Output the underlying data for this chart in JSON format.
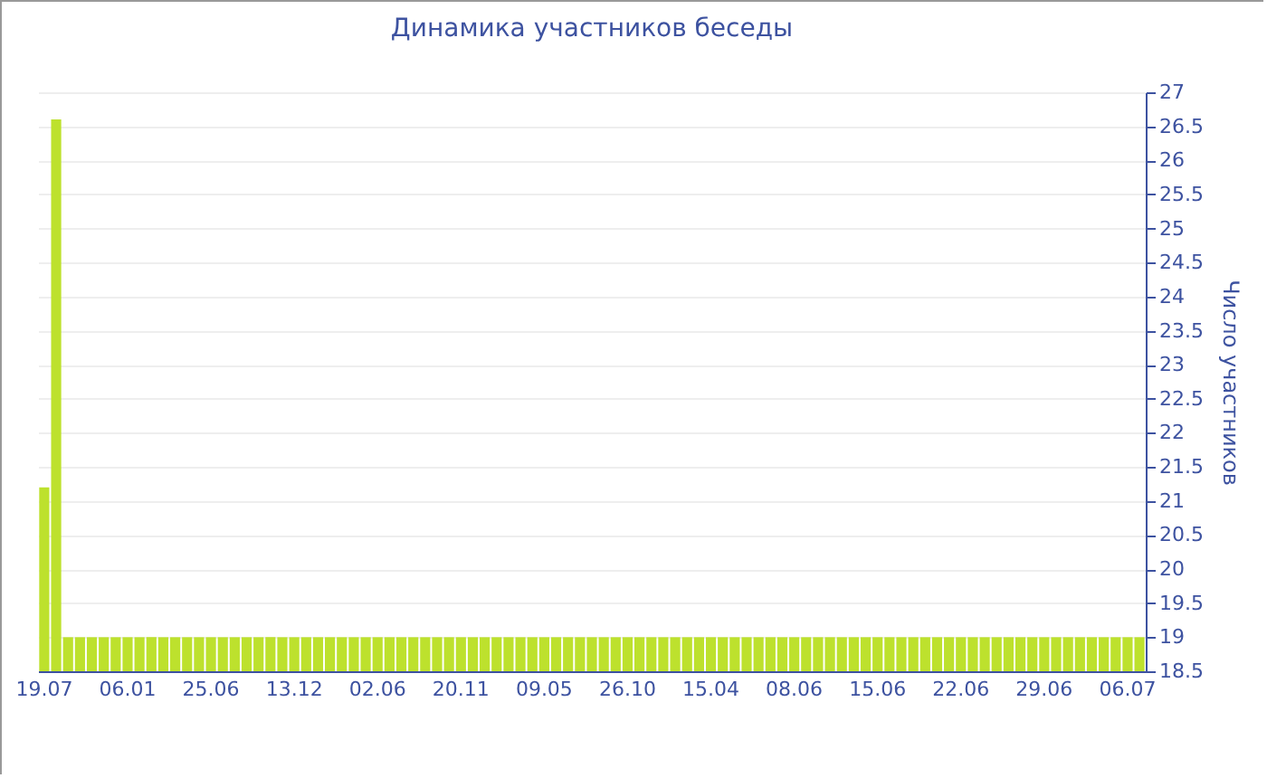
{
  "chart_data": {
    "type": "bar",
    "title": "Динамика участников беседы",
    "ylabel": "Число участников",
    "categories": [
      "19.07",
      null,
      null,
      null,
      null,
      null,
      null,
      "06.01",
      null,
      null,
      null,
      null,
      null,
      null,
      "25.06",
      null,
      null,
      null,
      null,
      null,
      null,
      "13.12",
      null,
      null,
      null,
      null,
      null,
      null,
      "02.06",
      null,
      null,
      null,
      null,
      null,
      null,
      "20.11",
      null,
      null,
      null,
      null,
      null,
      null,
      "09.05",
      null,
      null,
      null,
      null,
      null,
      null,
      "26.10",
      null,
      null,
      null,
      null,
      null,
      null,
      "15.04",
      null,
      null,
      null,
      null,
      null,
      null,
      "08.06",
      null,
      null,
      null,
      null,
      null,
      null,
      "15.06",
      null,
      null,
      null,
      null,
      null,
      null,
      "22.06",
      null,
      null,
      null,
      null,
      null,
      null,
      "29.06",
      null,
      null,
      null,
      null,
      null,
      null,
      "06.07",
      null
    ],
    "values": [
      21.2,
      26.6,
      19,
      19,
      19,
      19,
      19,
      19,
      19,
      19,
      19,
      19,
      19,
      19,
      19,
      19,
      19,
      19,
      19,
      19,
      19,
      19,
      19,
      19,
      19,
      19,
      19,
      19,
      19,
      19,
      19,
      19,
      19,
      19,
      19,
      19,
      19,
      19,
      19,
      19,
      19,
      19,
      19,
      19,
      19,
      19,
      19,
      19,
      19,
      19,
      19,
      19,
      19,
      19,
      19,
      19,
      19,
      19,
      19,
      19,
      19,
      19,
      19,
      19,
      19,
      19,
      19,
      19,
      19,
      19,
      19,
      19,
      19,
      19,
      19,
      19,
      19,
      19,
      19,
      19,
      19,
      19,
      19,
      19,
      19,
      19,
      19,
      19,
      19,
      19,
      19,
      19,
      19
    ],
    "color": "#bde12d",
    "ylim": [
      18.5,
      27
    ],
    "yticks": [
      18.5,
      19,
      19.5,
      20,
      20.5,
      21,
      21.5,
      22,
      22.5,
      23,
      23.5,
      24,
      24.5,
      25,
      25.5,
      26,
      26.5,
      27
    ],
    "grid": "y"
  }
}
